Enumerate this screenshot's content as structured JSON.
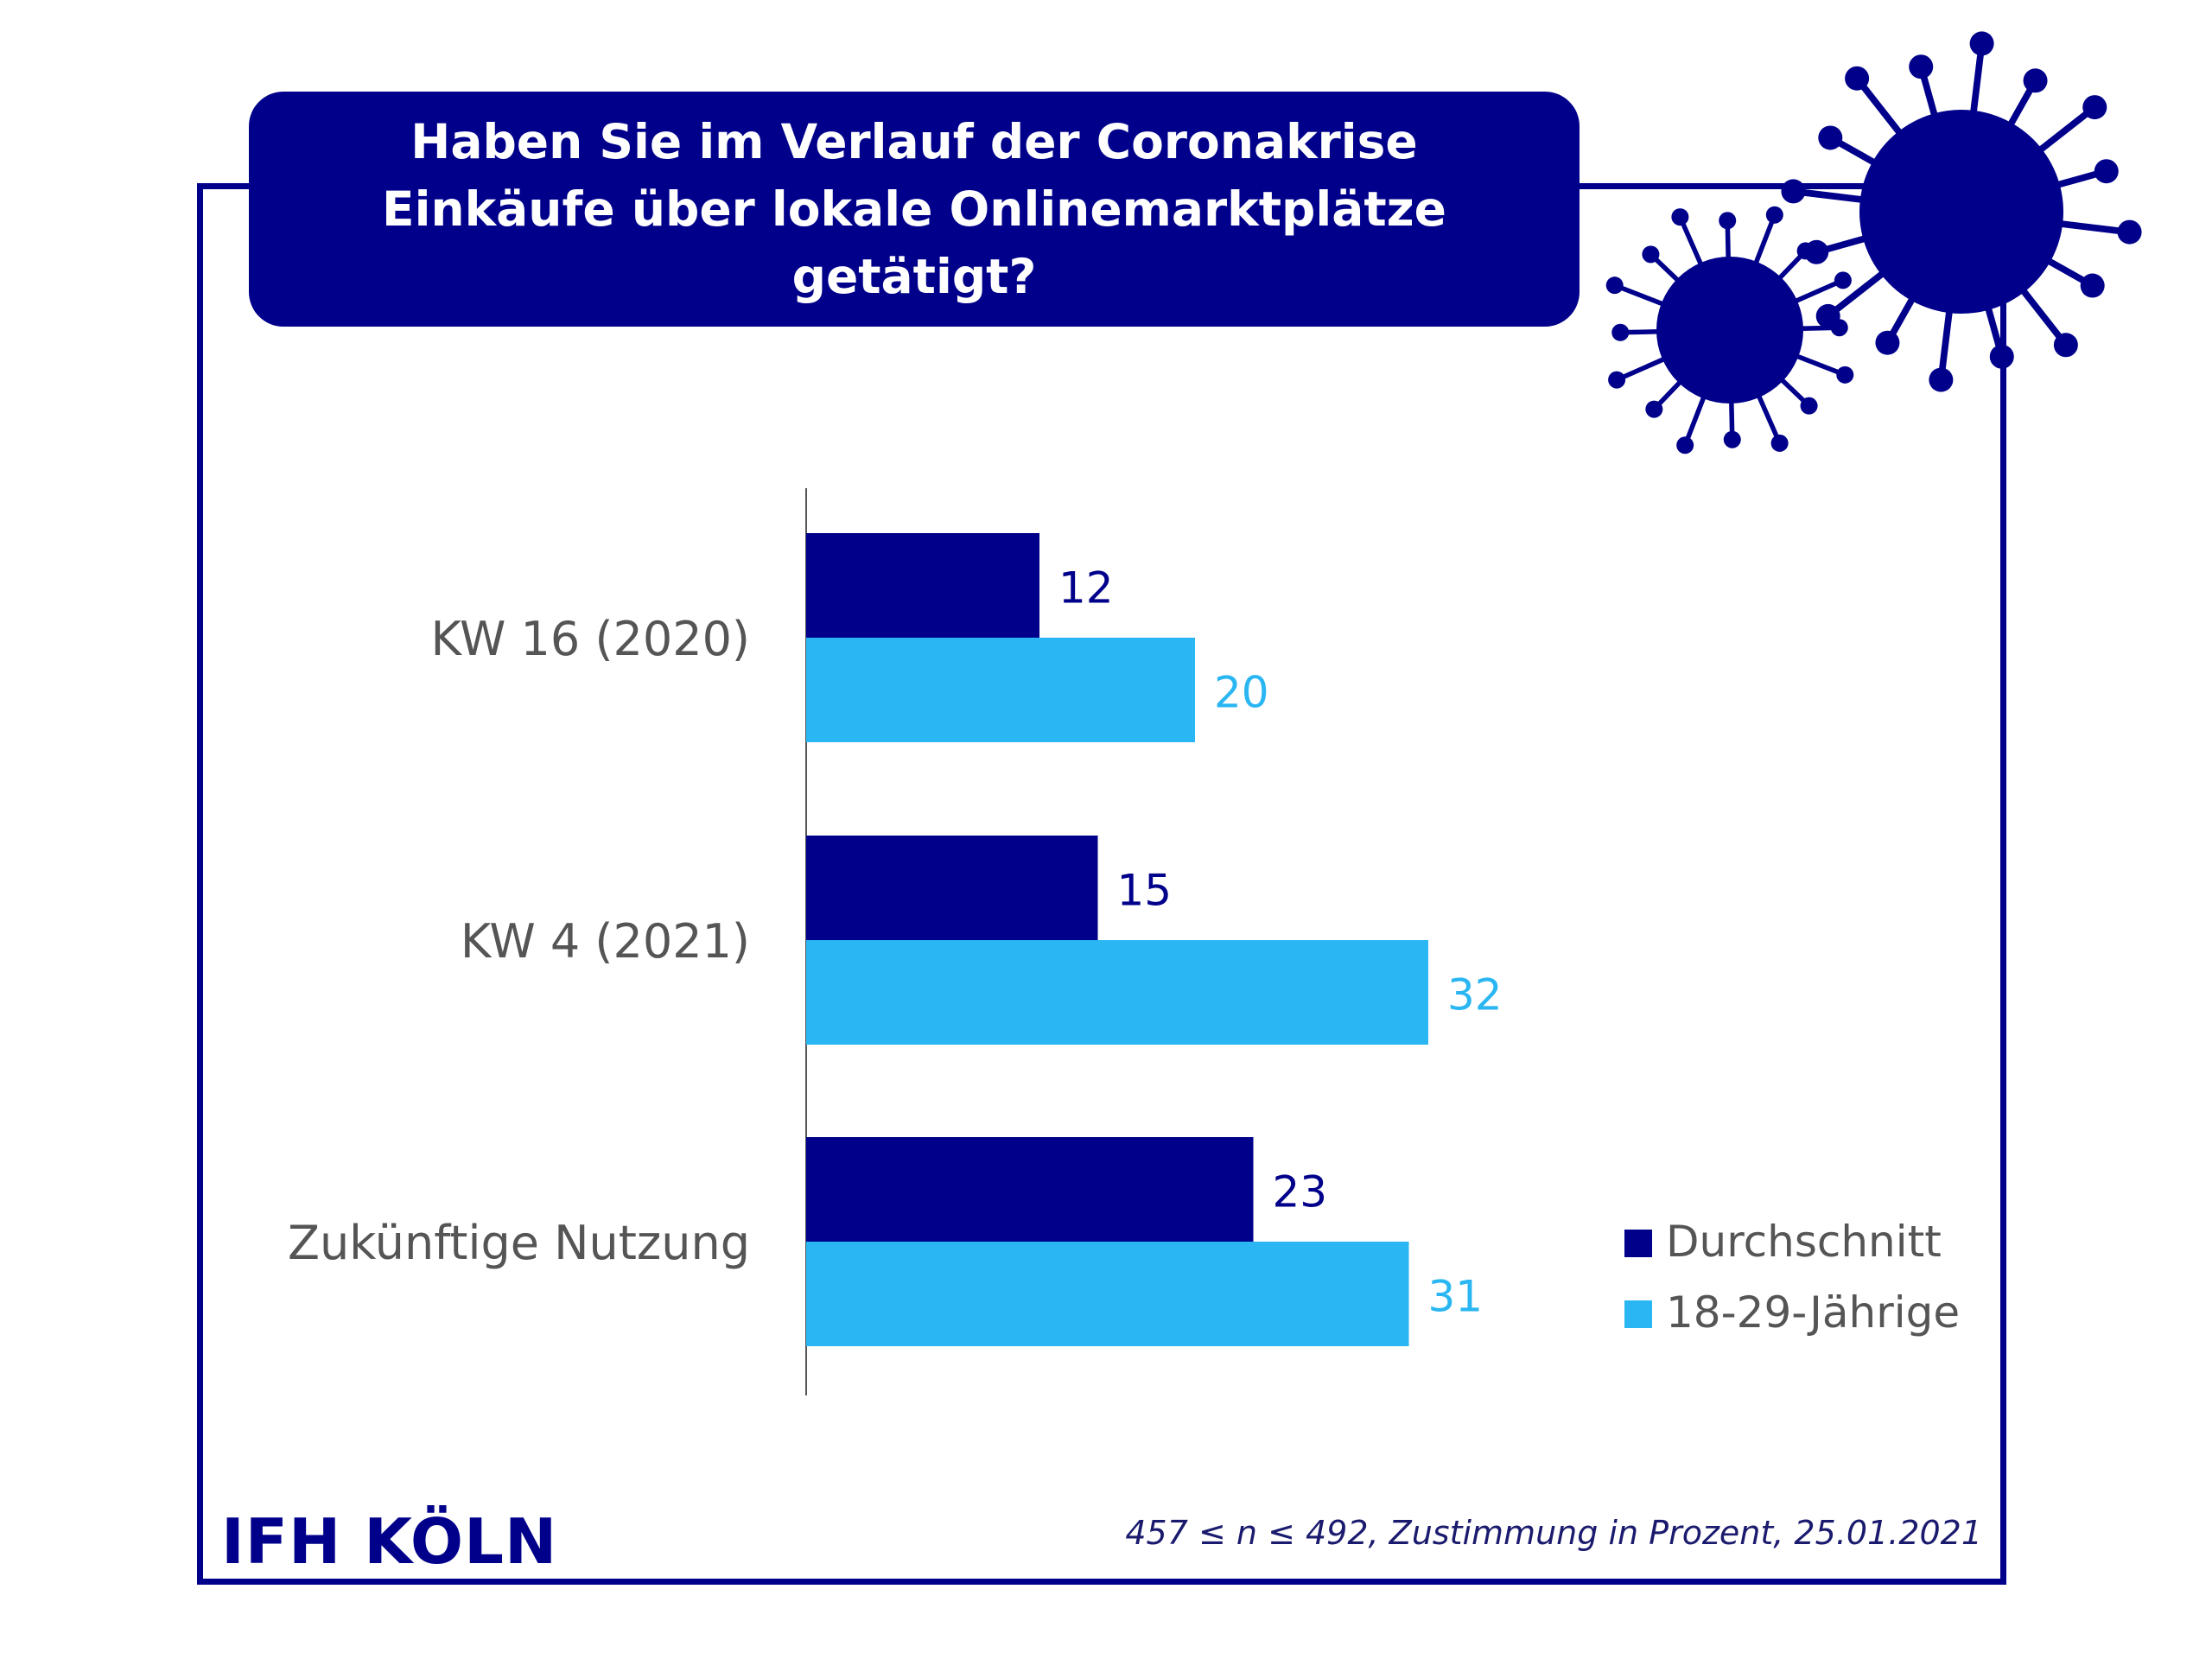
{
  "title": "Haben Sie im Verlauf der Coronakrise Einkäufe über lokale Onlinemarktplätze getätigt?",
  "logo": "IFH KÖLN",
  "footnote": "457 ≤ n ≤ 492, Zustimmung in Prozent, 25.01.2021",
  "colors": {
    "primary": "#00008b",
    "secondary": "#29b6f2",
    "label_text": "#555555"
  },
  "icons": [
    "virus-large-icon",
    "virus-small-icon"
  ],
  "chart_data": {
    "type": "bar",
    "orientation": "horizontal",
    "categories": [
      "KW 16 (2020)",
      "KW 4 (2021)",
      "Zukünftige Nutzung"
    ],
    "series": [
      {
        "name": "Durchschnitt",
        "values": [
          12,
          15,
          23
        ],
        "color": "#00008b"
      },
      {
        "name": "18-29-Jährige",
        "values": [
          20,
          32,
          31
        ],
        "color": "#29b6f2"
      }
    ],
    "xlim": [
      0,
      35
    ],
    "grid": false,
    "legend_position": "bottom-right",
    "data_labels": true
  }
}
